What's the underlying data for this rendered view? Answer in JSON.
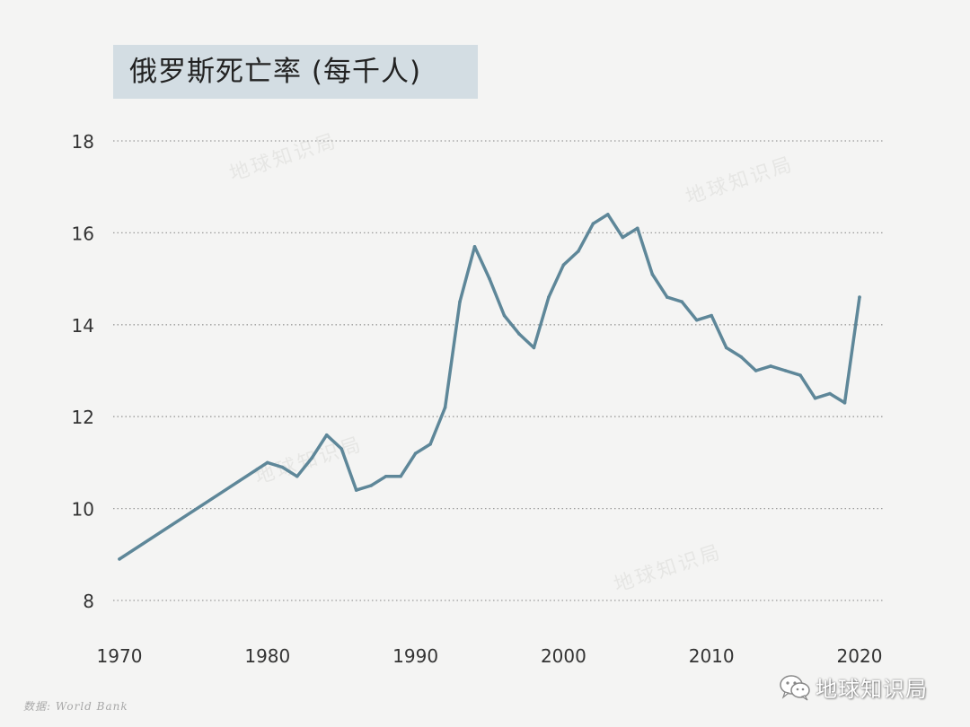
{
  "chart_data": {
    "type": "line",
    "title": "俄罗斯死亡率 (每千人)",
    "xlabel": "",
    "ylabel": "",
    "xlim": [
      1970,
      2020
    ],
    "ylim": [
      8,
      18
    ],
    "x_ticks": [
      1970,
      1980,
      1990,
      2000,
      2010,
      2020
    ],
    "y_ticks": [
      8,
      10,
      12,
      14,
      16,
      18
    ],
    "grid": "horizontal-dotted",
    "line_color": "#5e8799",
    "series": [
      {
        "name": "",
        "x": [
          1970,
          1980,
          1981,
          1982,
          1983,
          1984,
          1985,
          1986,
          1987,
          1988,
          1989,
          1990,
          1991,
          1992,
          1993,
          1994,
          1995,
          1996,
          1997,
          1998,
          1999,
          2000,
          2001,
          2002,
          2003,
          2004,
          2005,
          2006,
          2007,
          2008,
          2009,
          2010,
          2011,
          2012,
          2013,
          2014,
          2015,
          2016,
          2017,
          2018,
          2019,
          2020
        ],
        "values": [
          8.9,
          11.0,
          10.9,
          10.7,
          11.1,
          11.6,
          11.3,
          10.4,
          10.5,
          10.7,
          10.7,
          11.2,
          11.4,
          12.2,
          14.5,
          15.7,
          15.0,
          14.2,
          13.8,
          13.5,
          14.6,
          15.3,
          15.6,
          16.2,
          16.4,
          15.9,
          16.1,
          15.1,
          14.6,
          14.5,
          14.1,
          14.2,
          13.5,
          13.3,
          13.0,
          13.1,
          13.0,
          12.9,
          12.4,
          12.5,
          12.3,
          14.6
        ]
      }
    ]
  },
  "watermark_text": "地球知识局",
  "source_text": "数据: World Bank",
  "brand_text": "地球知识局",
  "brand_icon": "wechat-icon"
}
